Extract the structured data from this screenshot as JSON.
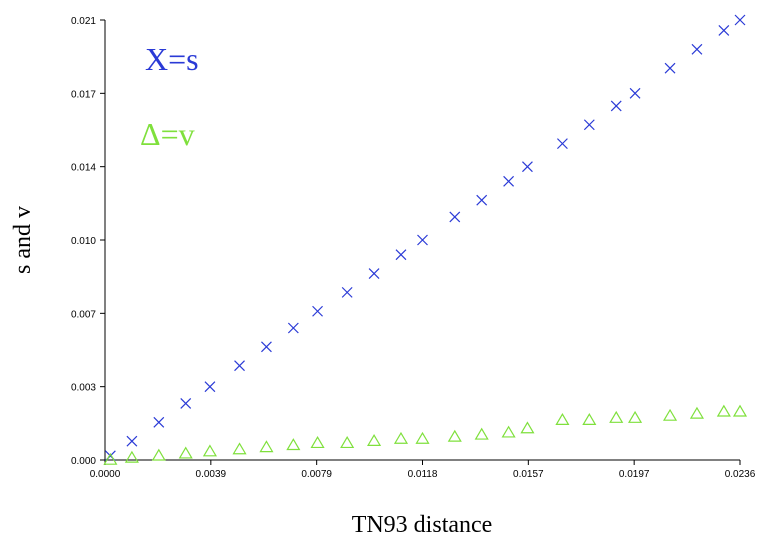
{
  "chart_data": {
    "type": "scatter",
    "title": "",
    "xlabel": "TN93 distance",
    "ylabel": "s and v",
    "xlim": [
      0,
      0.0236
    ],
    "ylim": [
      0,
      0.021
    ],
    "x_ticks": [
      "0.0000",
      "0.0039",
      "0.0079",
      "0.0118",
      "0.0157",
      "0.0197",
      "0.0236"
    ],
    "y_ticks": [
      "0.000",
      "0.003",
      "0.007",
      "0.010",
      "0.014",
      "0.017",
      "0.021"
    ],
    "grid": false,
    "legend_position": "top-left",
    "series": [
      {
        "name": "X=s",
        "marker": "x",
        "color": "#2a3ad6",
        "x": [
          0.0002,
          0.001,
          0.002,
          0.003,
          0.0039,
          0.005,
          0.006,
          0.007,
          0.0079,
          0.009,
          0.01,
          0.011,
          0.0118,
          0.013,
          0.014,
          0.015,
          0.0157,
          0.017,
          0.018,
          0.019,
          0.0197,
          0.021,
          0.022,
          0.023,
          0.0236
        ],
        "y": [
          0.0002,
          0.0009,
          0.0018,
          0.0027,
          0.0035,
          0.0045,
          0.0054,
          0.0063,
          0.0071,
          0.008,
          0.0089,
          0.0098,
          0.0105,
          0.0116,
          0.0124,
          0.0133,
          0.014,
          0.0151,
          0.016,
          0.0169,
          0.0175,
          0.0187,
          0.0196,
          0.0205,
          0.021
        ]
      },
      {
        "name": "Δ=v",
        "marker": "triangle",
        "color": "#7fe03c",
        "x": [
          0.0002,
          0.001,
          0.002,
          0.003,
          0.0039,
          0.005,
          0.006,
          0.007,
          0.0079,
          0.009,
          0.01,
          0.011,
          0.0118,
          0.013,
          0.014,
          0.015,
          0.0157,
          0.017,
          0.018,
          0.019,
          0.0197,
          0.021,
          0.022,
          0.023,
          0.0236
        ],
        "y": [
          0.0,
          0.0001,
          0.0002,
          0.0003,
          0.0004,
          0.0005,
          0.0006,
          0.0007,
          0.0008,
          0.0008,
          0.0009,
          0.001,
          0.001,
          0.0011,
          0.0012,
          0.0013,
          0.0015,
          0.0019,
          0.0019,
          0.002,
          0.002,
          0.0021,
          0.0022,
          0.0023,
          0.0023
        ]
      }
    ]
  }
}
